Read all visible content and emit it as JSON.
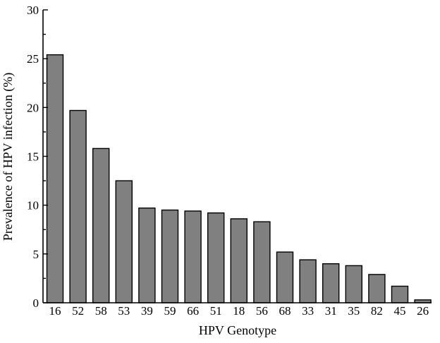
{
  "chart_data": {
    "type": "bar",
    "categories": [
      "16",
      "52",
      "58",
      "53",
      "39",
      "59",
      "66",
      "51",
      "18",
      "56",
      "68",
      "33",
      "31",
      "35",
      "82",
      "45",
      "26"
    ],
    "values": [
      25.4,
      19.7,
      15.8,
      12.5,
      9.7,
      9.5,
      9.4,
      9.2,
      8.6,
      8.3,
      5.2,
      4.4,
      4.0,
      3.8,
      2.9,
      1.7,
      0.3
    ],
    "title": "",
    "xlabel": "HPV Genotype",
    "ylabel": "Prevalence of HPV infection (%)",
    "ylim": [
      0,
      30
    ],
    "yticks": [
      "0",
      "5",
      "10",
      "15",
      "20",
      "25",
      "30"
    ],
    "ytick_values": [
      0,
      5,
      10,
      15,
      20,
      25,
      30
    ],
    "bar_color": "#808080",
    "grid": false,
    "legend": "none"
  }
}
